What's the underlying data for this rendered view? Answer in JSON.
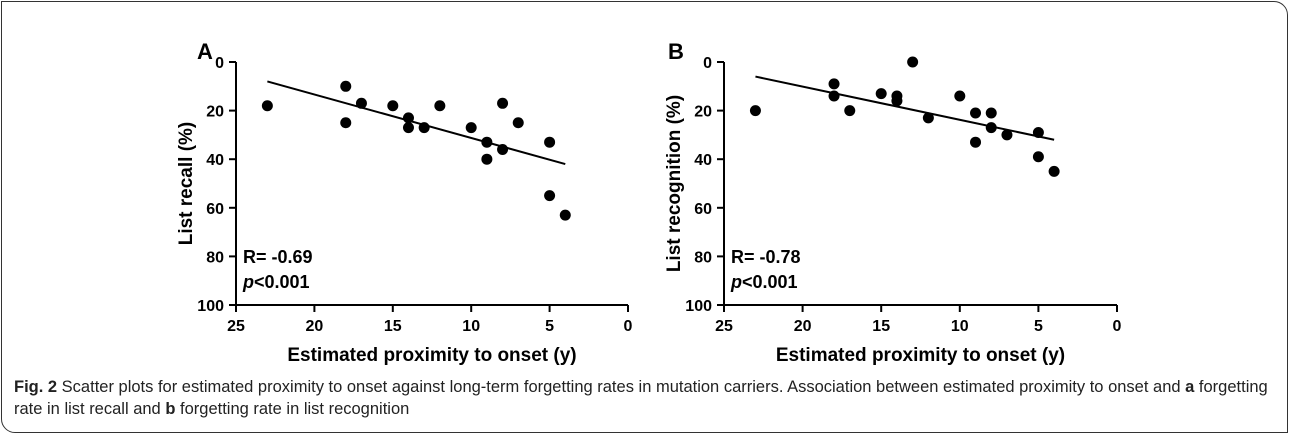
{
  "figure": {
    "caption": {
      "fig_label": "Fig. 2",
      "part1": " Scatter plots for estimated proximity to onset against long-term forgetting rates in mutation carriers. Association between estimated proximity to onset and ",
      "a": "a",
      "part2": " forgetting rate in list recall and ",
      "b": "b",
      "part3": " forgetting rate in list recognition"
    }
  },
  "colors": {
    "ink": "#000000",
    "caption": "#222222",
    "frame": "#333333"
  },
  "chart_data": [
    {
      "type": "scatter",
      "panel_label": "A",
      "xlabel": "Estimated proximity to onset (y)",
      "ylabel": "List recall (%)",
      "xlim": [
        25,
        0
      ],
      "ylim": [
        100,
        0
      ],
      "x_reversed": true,
      "y_reversed": true,
      "xticks": [
        25,
        20,
        15,
        10,
        5,
        0
      ],
      "yticks": [
        0,
        20,
        40,
        60,
        80,
        100
      ],
      "annotation": {
        "r_text": "R= -0.69",
        "p_letter": "p",
        "p_rest": "<0.001"
      },
      "points": [
        {
          "x": 23,
          "y": 18
        },
        {
          "x": 18,
          "y": 10
        },
        {
          "x": 18,
          "y": 25
        },
        {
          "x": 17,
          "y": 17
        },
        {
          "x": 15,
          "y": 18
        },
        {
          "x": 14,
          "y": 23
        },
        {
          "x": 14,
          "y": 27
        },
        {
          "x": 13,
          "y": 27
        },
        {
          "x": 12,
          "y": 18
        },
        {
          "x": 10,
          "y": 27
        },
        {
          "x": 9,
          "y": 33
        },
        {
          "x": 9,
          "y": 40
        },
        {
          "x": 8,
          "y": 17
        },
        {
          "x": 8,
          "y": 36
        },
        {
          "x": 7,
          "y": 25
        },
        {
          "x": 5,
          "y": 33
        },
        {
          "x": 5,
          "y": 55
        },
        {
          "x": 4,
          "y": 63
        }
      ],
      "fit_line": [
        {
          "x": 23,
          "y": 8
        },
        {
          "x": 4,
          "y": 42
        }
      ]
    },
    {
      "type": "scatter",
      "panel_label": "B",
      "xlabel": "Estimated proximity to onset (y)",
      "ylabel": "List recognition (%)",
      "xlim": [
        25,
        0
      ],
      "ylim": [
        100,
        0
      ],
      "x_reversed": true,
      "y_reversed": true,
      "xticks": [
        25,
        20,
        15,
        10,
        5,
        0
      ],
      "yticks": [
        0,
        20,
        40,
        60,
        80,
        100
      ],
      "annotation": {
        "r_text": "R= -0.78",
        "p_letter": "p",
        "p_rest": "<0.001"
      },
      "points": [
        {
          "x": 23,
          "y": 20
        },
        {
          "x": 18,
          "y": 9
        },
        {
          "x": 18,
          "y": 14
        },
        {
          "x": 17,
          "y": 20
        },
        {
          "x": 15,
          "y": 13
        },
        {
          "x": 14,
          "y": 14
        },
        {
          "x": 14,
          "y": 16
        },
        {
          "x": 13,
          "y": 0
        },
        {
          "x": 12,
          "y": 23
        },
        {
          "x": 10,
          "y": 14
        },
        {
          "x": 9,
          "y": 21
        },
        {
          "x": 9,
          "y": 33
        },
        {
          "x": 8,
          "y": 21
        },
        {
          "x": 8,
          "y": 27
        },
        {
          "x": 7,
          "y": 30
        },
        {
          "x": 5,
          "y": 29
        },
        {
          "x": 5,
          "y": 39
        },
        {
          "x": 4,
          "y": 45
        }
      ],
      "fit_line": [
        {
          "x": 23,
          "y": 6
        },
        {
          "x": 4,
          "y": 32
        }
      ]
    }
  ]
}
